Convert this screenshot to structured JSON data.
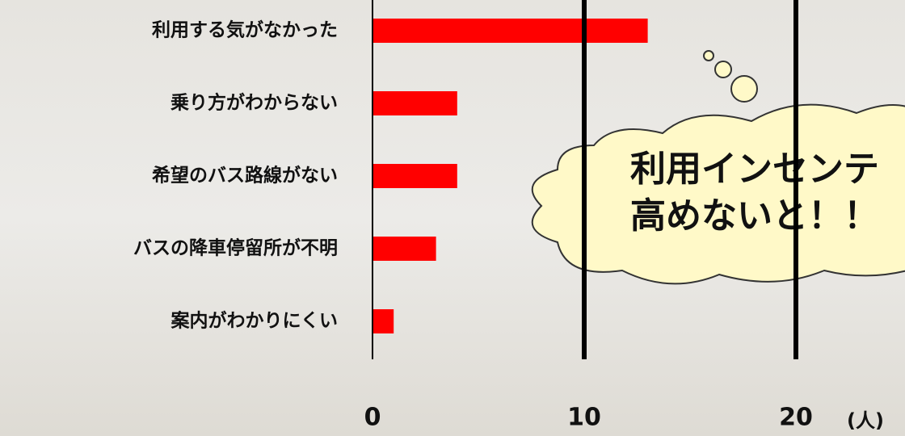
{
  "chart_data": {
    "type": "hbar",
    "categories": [
      "利用する気がなかった",
      "乗り方がわからない",
      "希望のバス路線がない",
      "バスの降車停留所が不明",
      "案内がわかりにくい"
    ],
    "values": [
      13,
      4,
      4,
      3,
      1
    ],
    "color": "#ff0000",
    "xlim": [
      0,
      25
    ],
    "xticks": [
      0,
      10,
      20
    ],
    "grid": true,
    "x_label": "(人)",
    "annotation": [
      "利用インセンテ",
      "高めないと！！"
    ]
  }
}
